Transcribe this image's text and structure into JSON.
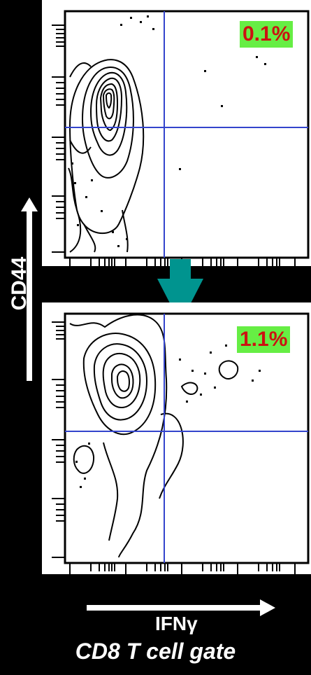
{
  "y_axis_label": "CD44",
  "x_axis_label": "IFNγ",
  "gate_label": "CD8 T cell gate",
  "panels": [
    {
      "percent_label": "0.1%"
    },
    {
      "percent_label": "1.1%"
    }
  ],
  "colors": {
    "background": "#000000",
    "badge_fill": "#66ee44",
    "badge_text": "#cc1111",
    "gate_lines": "#3344cc",
    "arrow": "#00948f"
  }
}
